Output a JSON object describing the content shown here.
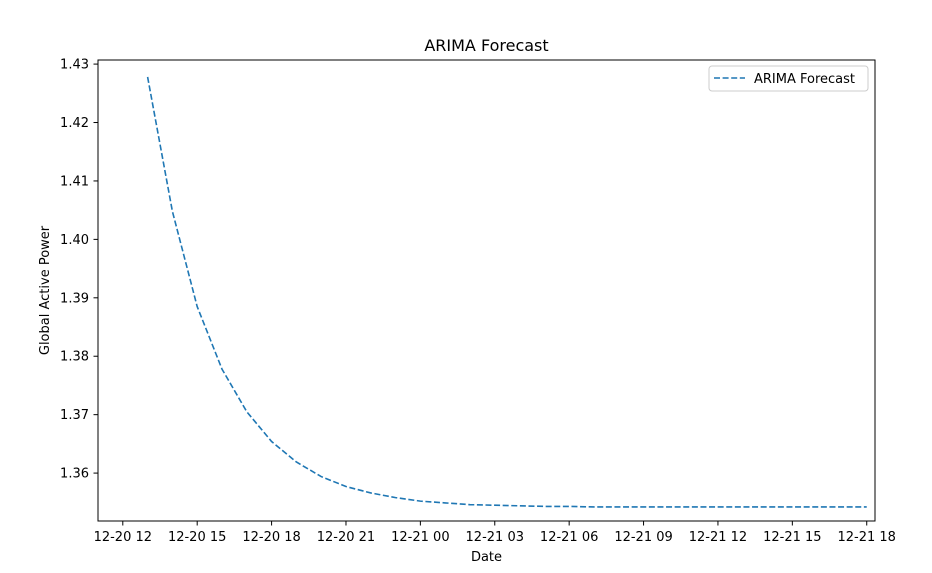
{
  "chart_data": {
    "type": "line",
    "title": "ARIMA Forecast",
    "xlabel": "Date",
    "ylabel": "Global Active Power",
    "x_start": "2006-12-20 13:00",
    "x_step_hours": 1,
    "xlim": [
      "2006-12-20 11:00",
      "2006-12-21 19:20"
    ],
    "ylim": [
      1.3518,
      1.4307
    ],
    "x_ticks": [
      {
        "hours_from_x_start": -1,
        "label": "12-20 12"
      },
      {
        "hours_from_x_start": 2,
        "label": "12-20 15"
      },
      {
        "hours_from_x_start": 5,
        "label": "12-20 18"
      },
      {
        "hours_from_x_start": 8,
        "label": "12-20 21"
      },
      {
        "hours_from_x_start": 11,
        "label": "12-21 00"
      },
      {
        "hours_from_x_start": 14,
        "label": "12-21 03"
      },
      {
        "hours_from_x_start": 17,
        "label": "12-21 06"
      },
      {
        "hours_from_x_start": 20,
        "label": "12-21 09"
      },
      {
        "hours_from_x_start": 23,
        "label": "12-21 12"
      },
      {
        "hours_from_x_start": 26,
        "label": "12-21 15"
      },
      {
        "hours_from_x_start": 29,
        "label": "12-21 18"
      }
    ],
    "y_ticks": [
      {
        "value": 1.36,
        "label": "1.36"
      },
      {
        "value": 1.37,
        "label": "1.37"
      },
      {
        "value": 1.38,
        "label": "1.38"
      },
      {
        "value": 1.39,
        "label": "1.39"
      },
      {
        "value": 1.4,
        "label": "1.40"
      },
      {
        "value": 1.41,
        "label": "1.41"
      },
      {
        "value": 1.42,
        "label": "1.42"
      },
      {
        "value": 1.43,
        "label": "1.43"
      }
    ],
    "grid": false,
    "legend_position": "top-right",
    "series": [
      {
        "name": "ARIMA Forecast",
        "color": "#1f77b4",
        "line_style": "dashed",
        "values": [
          1.4278,
          1.4048,
          1.3885,
          1.3778,
          1.3705,
          1.3654,
          1.3619,
          1.3594,
          1.3577,
          1.3566,
          1.3558,
          1.3552,
          1.3549,
          1.3546,
          1.3545,
          1.3544,
          1.3543,
          1.3543,
          1.3542,
          1.3542,
          1.3542,
          1.3542,
          1.3542,
          1.3542,
          1.3542,
          1.3542,
          1.3542,
          1.3542,
          1.3542,
          1.3542
        ]
      }
    ]
  }
}
